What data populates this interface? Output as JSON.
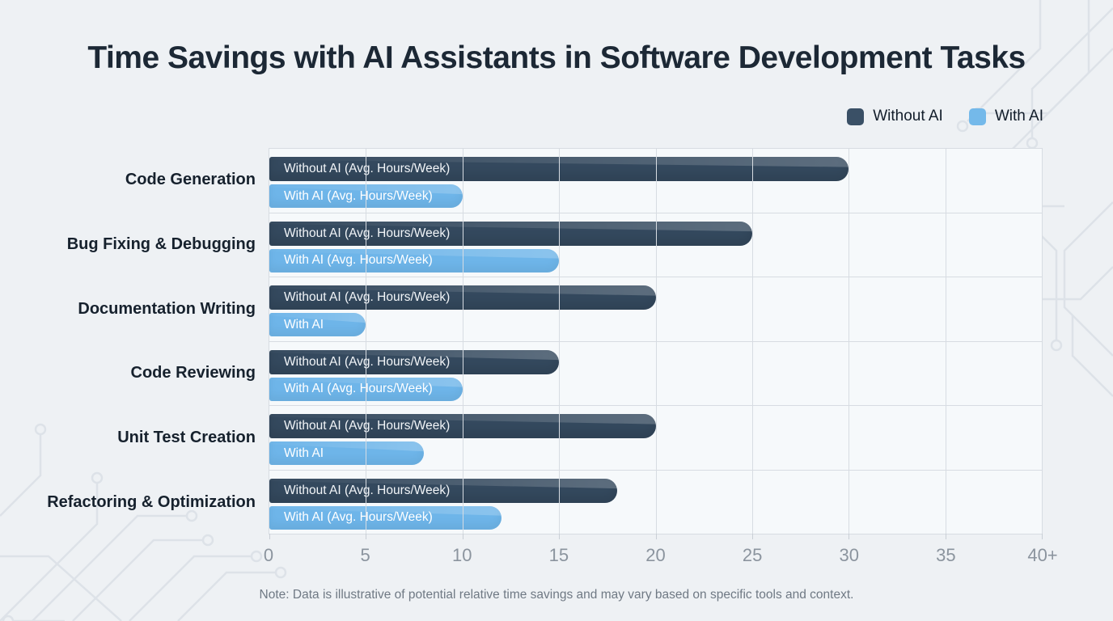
{
  "title": "Time Savings with AI Assistants in Software Development Tasks",
  "legend": [
    {
      "label": "Without AI",
      "color": "#3a5066"
    },
    {
      "label": "With AI",
      "color": "#74b9ea"
    }
  ],
  "note": "Note: Data is illustrative of potential relative time savings and may vary based on specific tools and context.",
  "colors": {
    "without_ai_bar": "#34495e",
    "with_ai_bar": "#6eb5e9",
    "page_background": "#eef1f4",
    "plot_background": "#f6f9fb",
    "gridline": "#d7dce2"
  },
  "chart_data": {
    "type": "bar",
    "orientation": "horizontal",
    "title": "Time Savings with AI Assistants in Software Development Tasks",
    "categories": [
      "Code Generation",
      "Bug Fixing & Debugging",
      "Documentation Writing",
      "Code Reviewing",
      "Unit Test Creation",
      "Refactoring & Optimization"
    ],
    "series": [
      {
        "name": "Without AI",
        "values": [
          30,
          25,
          20,
          15,
          20,
          18
        ],
        "bar_labels": [
          "Without AI (Avg. Hours/Week)",
          "Without AI (Avg. Hours/Week)",
          "Without AI (Avg. Hours/Week)",
          "Without AI (Avg. Hours/Week)",
          "Without AI (Avg. Hours/Week)",
          "Without AI (Avg. Hours/Week)"
        ]
      },
      {
        "name": "With AI",
        "values": [
          10,
          15,
          5,
          10,
          8,
          12
        ],
        "bar_labels": [
          "With AI (Avg. Hours/Week)",
          "With AI (Avg. Hours/Week)",
          "With AI",
          "With AI (Avg. Hours/Week)",
          "With AI",
          "With AI (Avg. Hours/Week)"
        ]
      }
    ],
    "x_ticks": [
      "0",
      "5",
      "10",
      "15",
      "20",
      "25",
      "30",
      "35",
      "40+"
    ],
    "xlim": [
      0,
      40
    ],
    "units": "Avg. Hours/Week",
    "grid": true,
    "legend_position": "top-right"
  }
}
